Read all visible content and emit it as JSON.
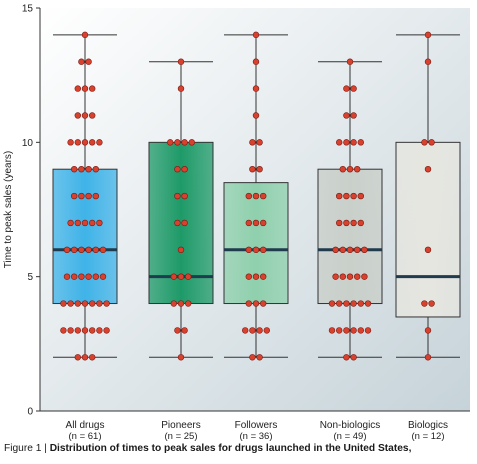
{
  "chart_data": {
    "type": "box",
    "ylabel": "Time to peak sales (years)",
    "ylim": [
      0,
      15
    ],
    "yticks": [
      "0",
      "5",
      "10",
      "15"
    ],
    "categories": [
      {
        "name": "All drugs",
        "n_label": "(n = 61)",
        "color": "#3fb3e8"
      },
      {
        "name": "Pioneers",
        "n_label": "(n = 25)",
        "color": "#1e9a68"
      },
      {
        "name": "Followers",
        "n_label": "(n = 36)",
        "color": "#8fd0ad"
      },
      {
        "name": "Non-biologics",
        "n_label": "(n = 49)",
        "color": "#c9cfc9"
      },
      {
        "name": "Biologics",
        "n_label": "(n = 12)",
        "color": "#e6e6e0"
      }
    ],
    "boxes": [
      {
        "min": 2,
        "q1": 4,
        "median": 6,
        "q3": 9,
        "max": 14
      },
      {
        "min": 2,
        "q1": 4,
        "median": 5,
        "q3": 10,
        "max": 13
      },
      {
        "min": 2,
        "q1": 4,
        "median": 6,
        "q3": 8.5,
        "max": 14
      },
      {
        "min": 2,
        "q1": 4,
        "median": 6,
        "q3": 9,
        "max": 13
      },
      {
        "min": 2,
        "q1": 3.5,
        "median": 5,
        "q3": 10,
        "max": 14
      }
    ],
    "points": [
      {
        "2": 3,
        "3": 7,
        "4": 7,
        "5": 6,
        "6": 6,
        "7": 5,
        "8": 4,
        "9": 4,
        "10": 5,
        "11": 3,
        "12": 3,
        "13": 2,
        "14": 1
      },
      {
        "2": 1,
        "3": 2,
        "4": 3,
        "5": 3,
        "6": 1,
        "7": 2,
        "8": 2,
        "9": 2,
        "10": 4,
        "12": 1,
        "13": 1
      },
      {
        "2": 2,
        "3": 4,
        "4": 3,
        "5": 3,
        "6": 3,
        "7": 3,
        "8": 3,
        "9": 2,
        "10": 2,
        "11": 1,
        "12": 1,
        "13": 1,
        "14": 1
      },
      {
        "2": 2,
        "3": 6,
        "4": 6,
        "5": 5,
        "6": 5,
        "7": 4,
        "8": 4,
        "9": 3,
        "10": 4,
        "11": 2,
        "12": 2,
        "13": 1
      },
      {
        "2": 1,
        "3": 1,
        "4": 2,
        "6": 1,
        "9": 1,
        "10": 2,
        "13": 1,
        "14": 1
      }
    ],
    "grid": false,
    "legend": "none"
  },
  "caption": {
    "prefix": "Figure 1 | ",
    "text": "Distribution of times to peak sales for drugs launched in the United States,"
  }
}
